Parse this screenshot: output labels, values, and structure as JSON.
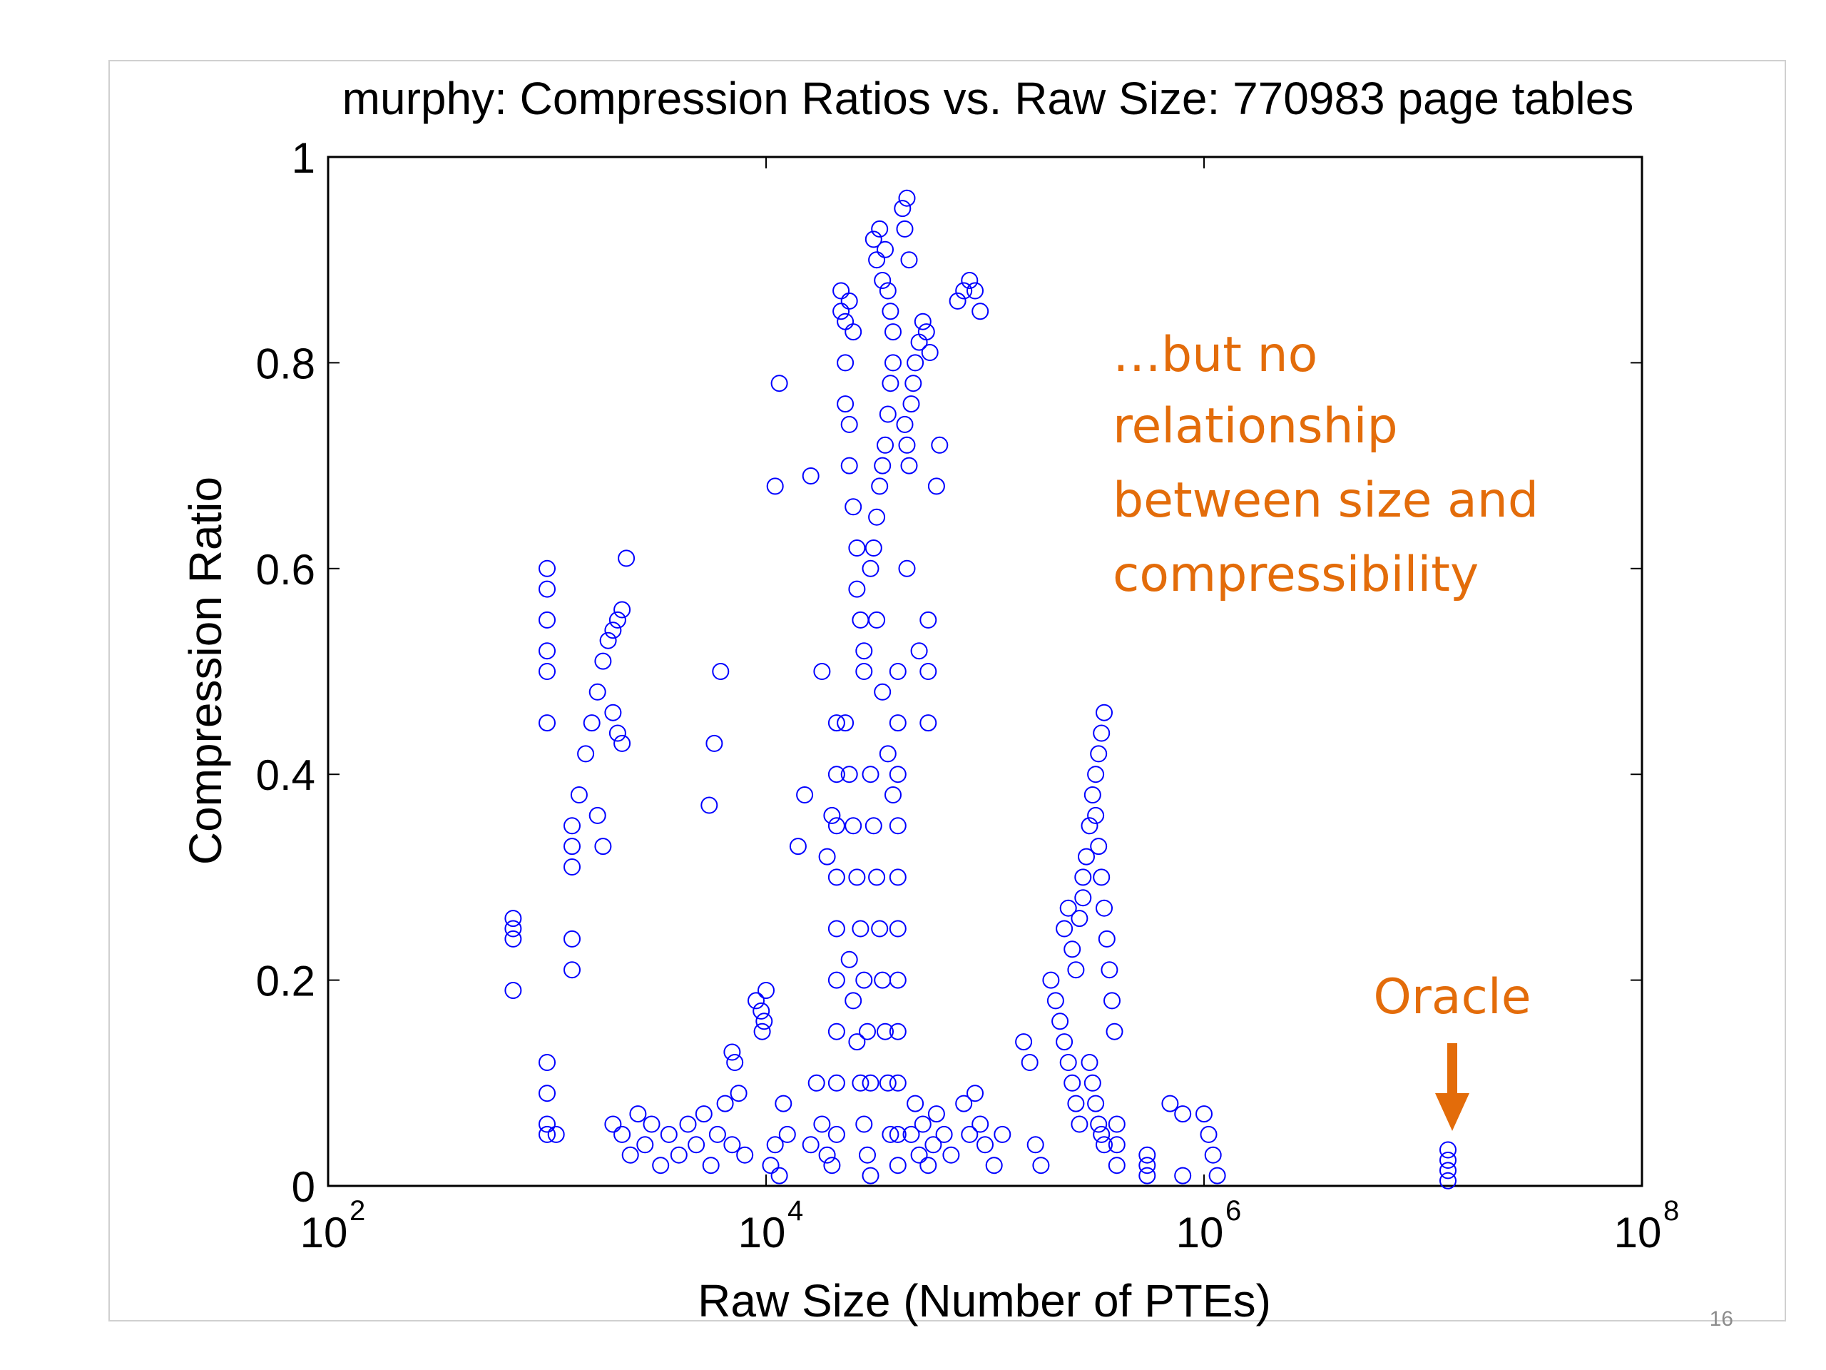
{
  "slide": {
    "number": "16"
  },
  "chart_data": {
    "type": "scatter",
    "title": "murphy: Compression Ratios vs. Raw Size: 770983 page tables",
    "xlabel": "Raw Size (Number of PTEs)",
    "ylabel": "Compression Ratio",
    "xscale": "log",
    "xlim": [
      100,
      100000000
    ],
    "ylim": [
      0,
      1
    ],
    "x_ticks": [
      {
        "base": "10",
        "exp": "2"
      },
      {
        "base": "10",
        "exp": "4"
      },
      {
        "base": "10",
        "exp": "6"
      },
      {
        "base": "10",
        "exp": "8"
      }
    ],
    "y_ticks": [
      "0",
      "0.2",
      "0.4",
      "0.6",
      "0.8",
      "1"
    ],
    "y_tick_values": [
      0,
      0.2,
      0.4,
      0.6,
      0.8,
      1
    ],
    "marker": "open-circle",
    "marker_color": "#0000ff",
    "grid": false,
    "series": [
      {
        "points": [
          [
            700,
            0.25
          ],
          [
            700,
            0.24
          ],
          [
            700,
            0.19
          ],
          [
            700,
            0.26
          ],
          [
            1000,
            0.6
          ],
          [
            1000,
            0.58
          ],
          [
            1000,
            0.55
          ],
          [
            1000,
            0.52
          ],
          [
            1000,
            0.5
          ],
          [
            1000,
            0.45
          ],
          [
            1000,
            0.12
          ],
          [
            1000,
            0.09
          ],
          [
            1000,
            0.06
          ],
          [
            1000,
            0.05
          ],
          [
            1100,
            0.05
          ],
          [
            1300,
            0.35
          ],
          [
            1300,
            0.33
          ],
          [
            1300,
            0.31
          ],
          [
            1300,
            0.24
          ],
          [
            1300,
            0.21
          ],
          [
            1400,
            0.38
          ],
          [
            1500,
            0.42
          ],
          [
            1600,
            0.45
          ],
          [
            1700,
            0.48
          ],
          [
            1800,
            0.51
          ],
          [
            1900,
            0.53
          ],
          [
            2000,
            0.54
          ],
          [
            2100,
            0.55
          ],
          [
            2200,
            0.56
          ],
          [
            2300,
            0.61
          ],
          [
            1700,
            0.36
          ],
          [
            1800,
            0.33
          ],
          [
            2000,
            0.46
          ],
          [
            2100,
            0.44
          ],
          [
            2200,
            0.43
          ],
          [
            2000,
            0.06
          ],
          [
            2200,
            0.05
          ],
          [
            2400,
            0.03
          ],
          [
            2600,
            0.07
          ],
          [
            2800,
            0.04
          ],
          [
            3000,
            0.06
          ],
          [
            3300,
            0.02
          ],
          [
            3600,
            0.05
          ],
          [
            4000,
            0.03
          ],
          [
            4400,
            0.06
          ],
          [
            4800,
            0.04
          ],
          [
            5200,
            0.07
          ],
          [
            5600,
            0.02
          ],
          [
            6000,
            0.05
          ],
          [
            6500,
            0.08
          ],
          [
            7000,
            0.04
          ],
          [
            7500,
            0.09
          ],
          [
            8000,
            0.03
          ],
          [
            6200,
            0.5
          ],
          [
            5800,
            0.43
          ],
          [
            5500,
            0.37
          ],
          [
            7000,
            0.13
          ],
          [
            7200,
            0.12
          ],
          [
            9000,
            0.18
          ],
          [
            9500,
            0.17
          ],
          [
            10000,
            0.19
          ],
          [
            9800,
            0.16
          ],
          [
            9600,
            0.15
          ],
          [
            10500,
            0.02
          ],
          [
            11000,
            0.04
          ],
          [
            11500,
            0.01
          ],
          [
            12000,
            0.08
          ],
          [
            12500,
            0.05
          ],
          [
            11000,
            0.68
          ],
          [
            11500,
            0.78
          ],
          [
            14000,
            0.33
          ],
          [
            15000,
            0.38
          ],
          [
            16000,
            0.69
          ],
          [
            16000,
            0.04
          ],
          [
            17000,
            0.1
          ],
          [
            18000,
            0.06
          ],
          [
            19000,
            0.03
          ],
          [
            20000,
            0.02
          ],
          [
            18000,
            0.5
          ],
          [
            19000,
            0.32
          ],
          [
            20000,
            0.36
          ],
          [
            21000,
            0.45
          ],
          [
            21000,
            0.4
          ],
          [
            21000,
            0.35
          ],
          [
            21000,
            0.3
          ],
          [
            21000,
            0.25
          ],
          [
            21000,
            0.2
          ],
          [
            21000,
            0.15
          ],
          [
            21000,
            0.1
          ],
          [
            21000,
            0.05
          ],
          [
            22000,
            0.87
          ],
          [
            22000,
            0.85
          ],
          [
            23000,
            0.84
          ],
          [
            24000,
            0.86
          ],
          [
            25000,
            0.83
          ],
          [
            23000,
            0.8
          ],
          [
            23000,
            0.76
          ],
          [
            24000,
            0.74
          ],
          [
            24000,
            0.7
          ],
          [
            25000,
            0.66
          ],
          [
            26000,
            0.62
          ],
          [
            26000,
            0.58
          ],
          [
            27000,
            0.55
          ],
          [
            28000,
            0.52
          ],
          [
            28000,
            0.5
          ],
          [
            23000,
            0.45
          ],
          [
            24000,
            0.4
          ],
          [
            25000,
            0.35
          ],
          [
            26000,
            0.3
          ],
          [
            27000,
            0.25
          ],
          [
            28000,
            0.2
          ],
          [
            29000,
            0.15
          ],
          [
            30000,
            0.1
          ],
          [
            24000,
            0.22
          ],
          [
            25000,
            0.18
          ],
          [
            26000,
            0.14
          ],
          [
            27000,
            0.1
          ],
          [
            28000,
            0.06
          ],
          [
            29000,
            0.03
          ],
          [
            30000,
            0.01
          ],
          [
            30000,
            0.6
          ],
          [
            31000,
            0.62
          ],
          [
            32000,
            0.65
          ],
          [
            33000,
            0.68
          ],
          [
            34000,
            0.7
          ],
          [
            35000,
            0.72
          ],
          [
            36000,
            0.75
          ],
          [
            37000,
            0.78
          ],
          [
            38000,
            0.8
          ],
          [
            31000,
            0.92
          ],
          [
            32000,
            0.9
          ],
          [
            33000,
            0.93
          ],
          [
            34000,
            0.88
          ],
          [
            35000,
            0.91
          ],
          [
            36000,
            0.87
          ],
          [
            37000,
            0.85
          ],
          [
            38000,
            0.83
          ],
          [
            30000,
            0.4
          ],
          [
            31000,
            0.35
          ],
          [
            32000,
            0.3
          ],
          [
            33000,
            0.25
          ],
          [
            34000,
            0.2
          ],
          [
            35000,
            0.15
          ],
          [
            36000,
            0.1
          ],
          [
            37000,
            0.05
          ],
          [
            32000,
            0.55
          ],
          [
            34000,
            0.48
          ],
          [
            36000,
            0.42
          ],
          [
            38000,
            0.38
          ],
          [
            40000,
            0.5
          ],
          [
            40000,
            0.45
          ],
          [
            40000,
            0.4
          ],
          [
            40000,
            0.35
          ],
          [
            40000,
            0.3
          ],
          [
            40000,
            0.25
          ],
          [
            40000,
            0.2
          ],
          [
            40000,
            0.15
          ],
          [
            40000,
            0.1
          ],
          [
            40000,
            0.05
          ],
          [
            40000,
            0.02
          ],
          [
            42000,
            0.95
          ],
          [
            43000,
            0.93
          ],
          [
            44000,
            0.96
          ],
          [
            45000,
            0.9
          ],
          [
            43000,
            0.74
          ],
          [
            44000,
            0.72
          ],
          [
            45000,
            0.7
          ],
          [
            46000,
            0.76
          ],
          [
            47000,
            0.78
          ],
          [
            48000,
            0.8
          ],
          [
            50000,
            0.82
          ],
          [
            52000,
            0.84
          ],
          [
            54000,
            0.83
          ],
          [
            56000,
            0.81
          ],
          [
            44000,
            0.6
          ],
          [
            46000,
            0.05
          ],
          [
            48000,
            0.08
          ],
          [
            50000,
            0.03
          ],
          [
            52000,
            0.06
          ],
          [
            55000,
            0.02
          ],
          [
            58000,
            0.04
          ],
          [
            60000,
            0.07
          ],
          [
            65000,
            0.05
          ],
          [
            70000,
            0.03
          ],
          [
            50000,
            0.52
          ],
          [
            55000,
            0.55
          ],
          [
            55000,
            0.5
          ],
          [
            55000,
            0.45
          ],
          [
            60000,
            0.68
          ],
          [
            62000,
            0.72
          ],
          [
            80000,
            0.08
          ],
          [
            85000,
            0.05
          ],
          [
            90000,
            0.09
          ],
          [
            95000,
            0.06
          ],
          [
            100000,
            0.04
          ],
          [
            110000,
            0.02
          ],
          [
            120000,
            0.05
          ],
          [
            75000,
            0.86
          ],
          [
            80000,
            0.87
          ],
          [
            85000,
            0.88
          ],
          [
            90000,
            0.87
          ],
          [
            95000,
            0.85
          ],
          [
            150000,
            0.14
          ],
          [
            160000,
            0.12
          ],
          [
            170000,
            0.04
          ],
          [
            180000,
            0.02
          ],
          [
            200000,
            0.2
          ],
          [
            210000,
            0.18
          ],
          [
            220000,
            0.16
          ],
          [
            230000,
            0.14
          ],
          [
            240000,
            0.12
          ],
          [
            250000,
            0.1
          ],
          [
            260000,
            0.08
          ],
          [
            270000,
            0.06
          ],
          [
            230000,
            0.25
          ],
          [
            240000,
            0.27
          ],
          [
            250000,
            0.23
          ],
          [
            260000,
            0.21
          ],
          [
            270000,
            0.26
          ],
          [
            280000,
            0.28
          ],
          [
            280000,
            0.3
          ],
          [
            290000,
            0.32
          ],
          [
            300000,
            0.35
          ],
          [
            310000,
            0.38
          ],
          [
            320000,
            0.4
          ],
          [
            330000,
            0.42
          ],
          [
            340000,
            0.44
          ],
          [
            350000,
            0.46
          ],
          [
            320000,
            0.36
          ],
          [
            330000,
            0.33
          ],
          [
            340000,
            0.3
          ],
          [
            350000,
            0.27
          ],
          [
            360000,
            0.24
          ],
          [
            370000,
            0.21
          ],
          [
            380000,
            0.18
          ],
          [
            390000,
            0.15
          ],
          [
            300000,
            0.12
          ],
          [
            310000,
            0.1
          ],
          [
            320000,
            0.08
          ],
          [
            330000,
            0.06
          ],
          [
            340000,
            0.05
          ],
          [
            350000,
            0.04
          ],
          [
            400000,
            0.06
          ],
          [
            400000,
            0.04
          ],
          [
            400000,
            0.02
          ],
          [
            550000,
            0.03
          ],
          [
            550000,
            0.02
          ],
          [
            550000,
            0.01
          ],
          [
            700000,
            0.08
          ],
          [
            800000,
            0.07
          ],
          [
            800000,
            0.01
          ],
          [
            1000000,
            0.07
          ],
          [
            1050000,
            0.05
          ],
          [
            1100000,
            0.03
          ],
          [
            1150000,
            0.01
          ],
          [
            13000000,
            0.035
          ],
          [
            13000000,
            0.025
          ],
          [
            13000000,
            0.015
          ],
          [
            13000000,
            0.005
          ]
        ]
      }
    ],
    "annotations": [
      {
        "lines": [
          "…but no",
          "relationship",
          "between size and",
          "compressibility"
        ],
        "color": "#e36c0a"
      },
      {
        "text": "Oracle",
        "color": "#e36c0a",
        "arrow": "down"
      }
    ]
  }
}
